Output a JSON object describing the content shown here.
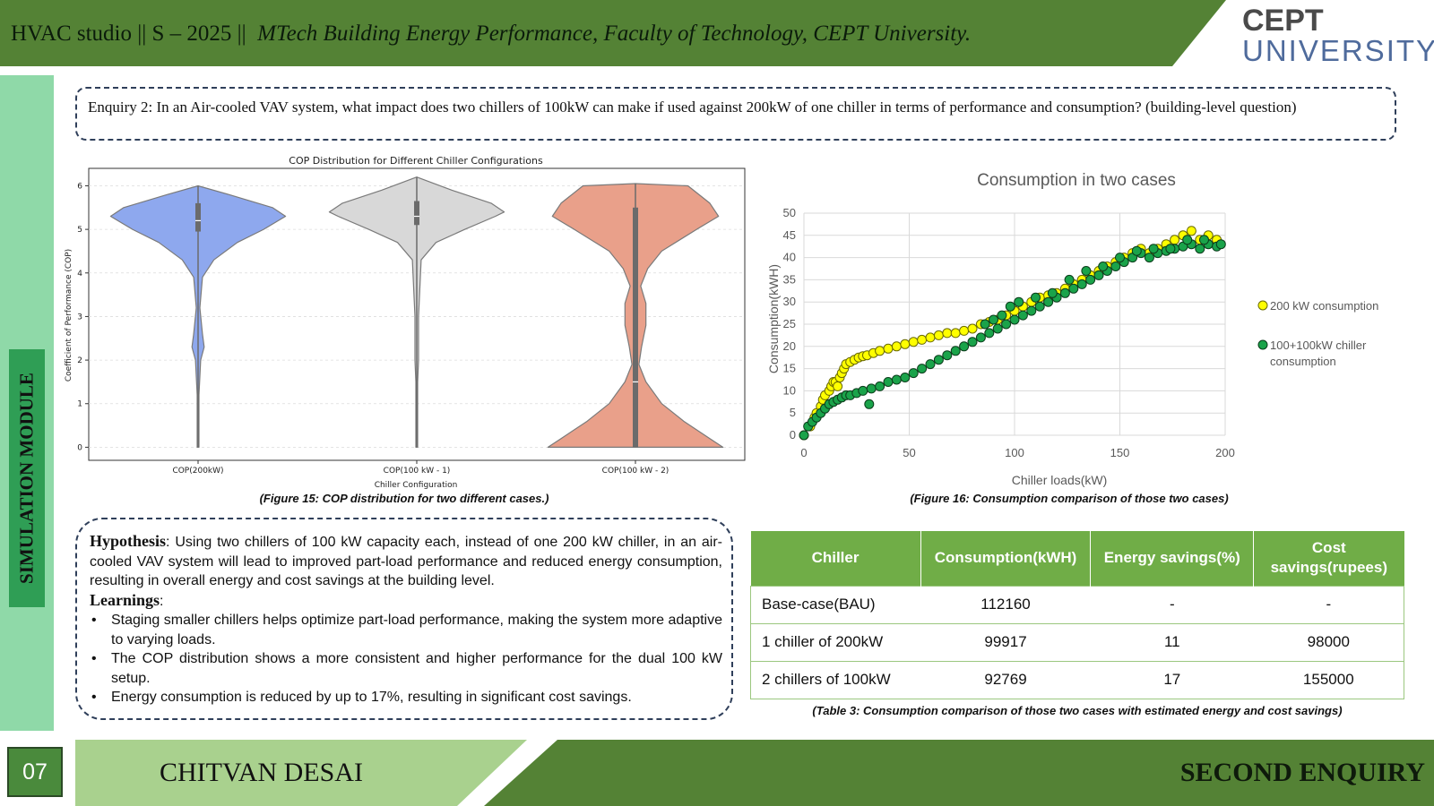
{
  "header": {
    "course": "HVAC studio || S – 2025 ||",
    "program": "MTech Building Energy Performance, Faculty of Technology, CEPT University.",
    "logo_line1": "CEPT",
    "logo_line2": "UNIVERSITY",
    "band_color": "#548235"
  },
  "sidebar": {
    "label": "SIMULATION MODULE"
  },
  "enquiry": {
    "text": "Enquiry 2: In an Air-cooled VAV system, what impact does two chillers of 100kW can make if used against 200kW of one chiller in terms of performance and consumption? (building-level question)"
  },
  "chart_data": [
    {
      "type": "violin",
      "title": "COP Distribution for Different Chiller Configurations",
      "xlabel": "Chiller Configuration",
      "ylabel": "Coefficient of Performance (COP)",
      "ylim": [
        -0.3,
        6.4
      ],
      "yticks": [
        "0",
        "1",
        "2",
        "3",
        "4",
        "5",
        "6"
      ],
      "categories": [
        "COP(200kW)",
        "COP(100 kW - 1)",
        "COP(100 kW - 2)"
      ],
      "colors": [
        "#8ea8ee",
        "#d8d8d8",
        "#e9a08a"
      ],
      "grid": true,
      "series": [
        {
          "min": 0,
          "max": 6.0,
          "q1": 4.95,
          "median": 5.2,
          "q3": 5.6,
          "profile": [
            [
              0,
              0.01
            ],
            [
              1.2,
              0.01
            ],
            [
              2.0,
              0.03
            ],
            [
              2.3,
              0.07
            ],
            [
              2.6,
              0.05
            ],
            [
              3.2,
              0.02
            ],
            [
              3.9,
              0.05
            ],
            [
              4.3,
              0.18
            ],
            [
              4.7,
              0.45
            ],
            [
              5.0,
              0.75
            ],
            [
              5.3,
              1.0
            ],
            [
              5.5,
              0.85
            ],
            [
              5.8,
              0.35
            ],
            [
              6.0,
              0.0
            ]
          ]
        },
        {
          "min": 0,
          "max": 6.2,
          "q1": 5.1,
          "median": 5.3,
          "q3": 5.65,
          "profile": [
            [
              0,
              0.01
            ],
            [
              1.5,
              0.01
            ],
            [
              2.0,
              0.02
            ],
            [
              3.0,
              0.02
            ],
            [
              4.3,
              0.05
            ],
            [
              4.7,
              0.22
            ],
            [
              5.0,
              0.55
            ],
            [
              5.3,
              0.9
            ],
            [
              5.4,
              1.0
            ],
            [
              5.6,
              0.85
            ],
            [
              5.9,
              0.4
            ],
            [
              6.2,
              0.0
            ]
          ]
        },
        {
          "min": 0,
          "max": 6.05,
          "q1": 0.0,
          "median": 1.5,
          "q3": 5.5,
          "profile": [
            [
              0,
              1.0
            ],
            [
              0.2,
              0.85
            ],
            [
              0.6,
              0.55
            ],
            [
              1.0,
              0.3
            ],
            [
              1.5,
              0.12
            ],
            [
              1.9,
              0.04
            ],
            [
              2.3,
              0.07
            ],
            [
              2.8,
              0.12
            ],
            [
              3.3,
              0.12
            ],
            [
              3.7,
              0.06
            ],
            [
              4.1,
              0.14
            ],
            [
              4.5,
              0.3
            ],
            [
              5.0,
              0.7
            ],
            [
              5.3,
              0.95
            ],
            [
              5.6,
              0.85
            ],
            [
              6.0,
              0.6
            ],
            [
              6.05,
              0.0
            ]
          ]
        }
      ]
    },
    {
      "type": "scatter",
      "title": "Consumption in two cases",
      "xlabel": "Chiller loads(kW)",
      "ylabel": "Consumption(kWH)",
      "xlim": [
        0,
        200
      ],
      "ylim": [
        0,
        50
      ],
      "xticks": [
        0,
        50,
        100,
        150,
        200
      ],
      "yticks": [
        0,
        5,
        10,
        15,
        20,
        25,
        30,
        35,
        40,
        45,
        50
      ],
      "legend": "right",
      "grid": true,
      "series": [
        {
          "name": "200 kW consumption",
          "color": "#ffff00",
          "edge": "#6b6b00",
          "points": [
            [
              0,
              0
            ],
            [
              3,
              2
            ],
            [
              5,
              4
            ],
            [
              6,
              5
            ],
            [
              8,
              6.5
            ],
            [
              9,
              8
            ],
            [
              10,
              9
            ],
            [
              12,
              10
            ],
            [
              13,
              11
            ],
            [
              14,
              12
            ],
            [
              15,
              12
            ],
            [
              16,
              11
            ],
            [
              17,
              13
            ],
            [
              18,
              14
            ],
            [
              19,
              15
            ],
            [
              20,
              16
            ],
            [
              22,
              16.5
            ],
            [
              24,
              17
            ],
            [
              26,
              17.5
            ],
            [
              28,
              17.8
            ],
            [
              30,
              18
            ],
            [
              33,
              18.5
            ],
            [
              36,
              19
            ],
            [
              40,
              19.5
            ],
            [
              44,
              20
            ],
            [
              48,
              20.5
            ],
            [
              52,
              21
            ],
            [
              56,
              21.5
            ],
            [
              60,
              22
            ],
            [
              64,
              22.5
            ],
            [
              68,
              23
            ],
            [
              72,
              23
            ],
            [
              76,
              23.5
            ],
            [
              80,
              24
            ],
            [
              84,
              25
            ],
            [
              88,
              25.5
            ],
            [
              92,
              26
            ],
            [
              96,
              27
            ],
            [
              100,
              28
            ],
            [
              104,
              29
            ],
            [
              108,
              30
            ],
            [
              112,
              31
            ],
            [
              116,
              31.5
            ],
            [
              120,
              32
            ],
            [
              124,
              33
            ],
            [
              128,
              34
            ],
            [
              132,
              35
            ],
            [
              136,
              36
            ],
            [
              140,
              37
            ],
            [
              144,
              38
            ],
            [
              148,
              39
            ],
            [
              152,
              40
            ],
            [
              156,
              41
            ],
            [
              160,
              42
            ],
            [
              164,
              41
            ],
            [
              168,
              42
            ],
            [
              172,
              43
            ],
            [
              176,
              44
            ],
            [
              180,
              45
            ],
            [
              184,
              46
            ],
            [
              188,
              44
            ],
            [
              192,
              45
            ],
            [
              196,
              44
            ]
          ]
        },
        {
          "name": "100+100kW chiller consumption",
          "color": "#1aa34a",
          "edge": "#0b3d1b",
          "points": [
            [
              0,
              0
            ],
            [
              2,
              2
            ],
            [
              4,
              3
            ],
            [
              6,
              4
            ],
            [
              8,
              5
            ],
            [
              10,
              6
            ],
            [
              12,
              7
            ],
            [
              14,
              7.5
            ],
            [
              16,
              8
            ],
            [
              18,
              8.5
            ],
            [
              20,
              9
            ],
            [
              22,
              9
            ],
            [
              25,
              9.5
            ],
            [
              28,
              10
            ],
            [
              31,
              7
            ],
            [
              32,
              10.5
            ],
            [
              36,
              11
            ],
            [
              40,
              12
            ],
            [
              44,
              12.5
            ],
            [
              48,
              13
            ],
            [
              52,
              14
            ],
            [
              56,
              15
            ],
            [
              60,
              16
            ],
            [
              64,
              17
            ],
            [
              68,
              18
            ],
            [
              72,
              19
            ],
            [
              76,
              20
            ],
            [
              80,
              21
            ],
            [
              84,
              22
            ],
            [
              88,
              23
            ],
            [
              92,
              24
            ],
            [
              96,
              25
            ],
            [
              100,
              26
            ],
            [
              104,
              27
            ],
            [
              108,
              28
            ],
            [
              112,
              29
            ],
            [
              116,
              30
            ],
            [
              120,
              31
            ],
            [
              124,
              32
            ],
            [
              128,
              33
            ],
            [
              132,
              34
            ],
            [
              136,
              35
            ],
            [
              140,
              36
            ],
            [
              144,
              37
            ],
            [
              148,
              38
            ],
            [
              152,
              39
            ],
            [
              156,
              40
            ],
            [
              160,
              41
            ],
            [
              164,
              40
            ],
            [
              168,
              41
            ],
            [
              172,
              41.5
            ],
            [
              176,
              42
            ],
            [
              180,
              42.5
            ],
            [
              184,
              43
            ],
            [
              188,
              42
            ],
            [
              192,
              43
            ],
            [
              196,
              42.5
            ],
            [
              86,
              25
            ],
            [
              90,
              26
            ],
            [
              94,
              27
            ],
            [
              98,
              29
            ],
            [
              102,
              30
            ],
            [
              110,
              31
            ],
            [
              118,
              32
            ],
            [
              126,
              35
            ],
            [
              134,
              37
            ],
            [
              142,
              38
            ],
            [
              150,
              40
            ],
            [
              158,
              41.5
            ],
            [
              166,
              42
            ],
            [
              174,
              42
            ],
            [
              182,
              44
            ],
            [
              190,
              44
            ],
            [
              198,
              43
            ]
          ]
        }
      ]
    }
  ],
  "captions": {
    "fig15": "(Figure 15: COP distribution for two different cases.)",
    "fig16": "(Figure 16: Consumption comparison of those two cases)",
    "table3": "(Table 3: Consumption comparison of those two cases with estimated energy and cost savings)"
  },
  "hypothesis": {
    "label": "Hypothesis",
    "text": ": Using two chillers of 100 kW capacity each, instead of one 200 kW chiller, in an air-cooled VAV system will lead to improved part-load performance and reduced energy consumption, resulting in overall energy and cost savings at the building level.",
    "learnings_label": "Learnings",
    "learnings_colon": ":",
    "learnings": [
      "Staging smaller chillers helps optimize part-load performance, making the system more adaptive to varying loads.",
      "The COP distribution shows a more consistent and higher performance for the dual 100 kW setup.",
      "Energy consumption is reduced by up to 17%, resulting in significant cost savings."
    ]
  },
  "table": {
    "headers": [
      "Chiller",
      "Consumption(kWH)",
      "Energy savings(%)",
      "Cost savings(rupees)"
    ],
    "rows": [
      [
        "Base-case(BAU)",
        "112160",
        "-",
        "-"
      ],
      [
        "1 chiller of 200kW",
        "99917",
        "11",
        "98000"
      ],
      [
        "2 chillers of 100kW",
        "92769",
        "17",
        "155000"
      ]
    ]
  },
  "footer": {
    "page_number": "07",
    "author": "CHITVAN DESAI",
    "section": "SECOND ENQUIRY",
    "light_color": "#a9d18e",
    "dark_color": "#548235"
  }
}
